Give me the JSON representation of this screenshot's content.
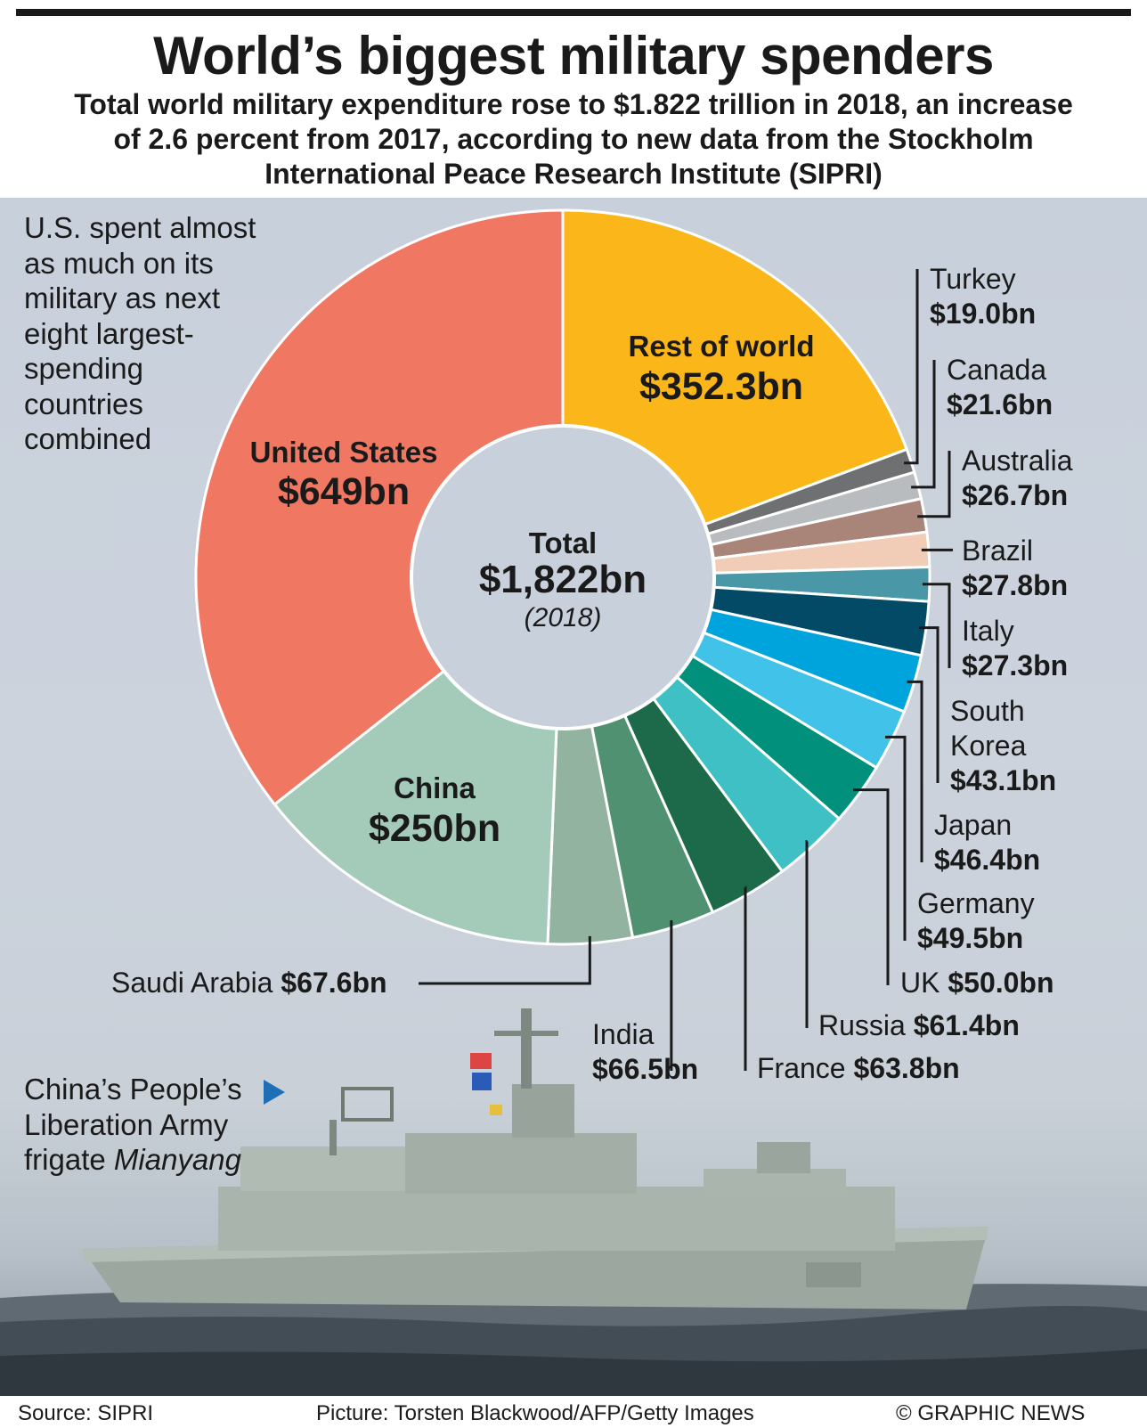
{
  "title": "World’s biggest military spenders",
  "subtitle_lines": [
    "Total world military expenditure rose to $1.822 trillion in 2018, an increase",
    "of 2.6 percent from 2017, according to new data from the Stockholm",
    "International Peace Research Institute (SIPRI)"
  ],
  "note_lines": [
    "U.S. spent almost",
    "as much on its",
    "military as next",
    "eight largest-",
    "spending",
    "countries",
    "combined"
  ],
  "photo_caption": {
    "line1": "China’s People’s",
    "line2": "Liberation Army",
    "line3_prefix": "frigate ",
    "line3_italic": "Mianyang"
  },
  "footer": {
    "source": "Source: SIPRI",
    "picture": "Picture: Torsten Blackwood/AFP/Getty Images",
    "copyright": "© GRAPHIC NEWS"
  },
  "colors": {
    "background_panel": "#c8d0dc",
    "united_states": "#f07862",
    "rest_of_world": "#fbb71a",
    "china": "#a4cbb9"
  },
  "chart_data": {
    "type": "pie",
    "center_label": {
      "title": "Total",
      "value": "$1,822bn",
      "year": "(2018)"
    },
    "total": 1822,
    "unit": "$bn",
    "slices": [
      {
        "name": "Rest of world",
        "value": 352.3,
        "label": "$352.3bn",
        "color": "#fbb71a"
      },
      {
        "name": "Turkey",
        "value": 19.0,
        "label": "$19.0bn",
        "color": "#6f7072"
      },
      {
        "name": "Canada",
        "value": 21.6,
        "label": "$21.6bn",
        "color": "#b8bcbf"
      },
      {
        "name": "Australia",
        "value": 26.7,
        "label": "$26.7bn",
        "color": "#a98579"
      },
      {
        "name": "Brazil",
        "value": 27.8,
        "label": "$27.8bn",
        "color": "#f1cdb7"
      },
      {
        "name": "Italy",
        "value": 27.3,
        "label": "$27.3bn",
        "color": "#4a97a7"
      },
      {
        "name": "South Korea",
        "value": 43.1,
        "label": "$43.1bn",
        "color": "#034a66"
      },
      {
        "name": "Japan",
        "value": 46.4,
        "label": "$46.4bn",
        "color": "#00a4dc"
      },
      {
        "name": "Germany",
        "value": 49.5,
        "label": "$49.5bn",
        "color": "#41c2e8"
      },
      {
        "name": "UK",
        "value": 50.0,
        "label": "$50.0bn",
        "color": "#00907b"
      },
      {
        "name": "Russia",
        "value": 61.4,
        "label": "$61.4bn",
        "color": "#3fc0c4"
      },
      {
        "name": "France",
        "value": 63.8,
        "label": "$63.8bn",
        "color": "#1d6a4b"
      },
      {
        "name": "India",
        "value": 66.5,
        "label": "$66.5bn",
        "color": "#4f9170"
      },
      {
        "name": "Saudi Arabia",
        "value": 67.6,
        "label": "$67.6bn",
        "color": "#92b3a0"
      },
      {
        "name": "China",
        "value": 250,
        "label": "$250bn",
        "color": "#a4cbb9"
      },
      {
        "name": "United States",
        "value": 649,
        "label": "$649bn",
        "color": "#f07862"
      }
    ],
    "callouts": [
      {
        "name": "Turkey",
        "name_display": "Turkey",
        "value_display": "$19.0bn"
      },
      {
        "name": "Canada",
        "name_display": "Canada",
        "value_display": "$21.6bn"
      },
      {
        "name": "Australia",
        "name_display": "Australia",
        "value_display": "$26.7bn"
      },
      {
        "name": "Brazil",
        "name_display": "Brazil",
        "value_display": "$27.8bn"
      },
      {
        "name": "Italy",
        "name_display": "Italy",
        "value_display": "$27.3bn"
      },
      {
        "name": "South Korea",
        "name_display": "South Korea",
        "value_display": "$43.1bn"
      },
      {
        "name": "Japan",
        "name_display": "Japan",
        "value_display": "$46.4bn"
      },
      {
        "name": "Germany",
        "name_display": "Germany",
        "value_display": "$49.5bn"
      },
      {
        "name": "UK",
        "name_display": "UK",
        "value_display": "$50.0bn"
      },
      {
        "name": "Russia",
        "name_display": "Russia",
        "value_display": "$61.4bn"
      },
      {
        "name": "France",
        "name_display": "France",
        "value_display": "$63.8bn"
      },
      {
        "name": "India",
        "name_display": "India",
        "value_display": "$66.5bn"
      },
      {
        "name": "Saudi Arabia",
        "name_display": "Saudi Arabia",
        "value_display": "$67.6bn"
      }
    ],
    "inner_labels": [
      {
        "name": "Rest of world",
        "value_display": "$352.3bn"
      },
      {
        "name": "United States",
        "value_display": "$649bn"
      },
      {
        "name": "China",
        "value_display": "$250bn"
      }
    ]
  }
}
